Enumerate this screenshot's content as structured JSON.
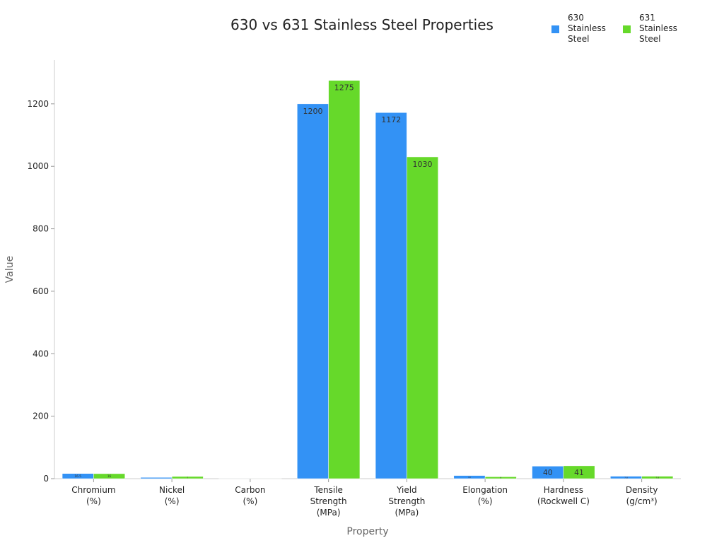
{
  "chart_data": {
    "type": "bar",
    "title": "630 vs 631 Stainless Steel Properties",
    "x_label": "Property",
    "y_label": "Value",
    "categories": [
      [
        "Chromium",
        "(%)"
      ],
      [
        "Nickel",
        "(%)"
      ],
      [
        "Carbon",
        "(%)"
      ],
      [
        "Tensile",
        "Strength",
        "(MPa)"
      ],
      [
        "Yield",
        "Strength",
        "(MPa)"
      ],
      [
        "Elongation",
        "(%)"
      ],
      [
        "Hardness",
        "(Rockwell C)"
      ],
      [
        "Density",
        "(g/cm³)"
      ]
    ],
    "series": [
      {
        "name": "630 Stainless Steel",
        "color": "#3392f5",
        "values": [
          16.5,
          4,
          0.07,
          1200,
          1172,
          10,
          40,
          7.8
        ]
      },
      {
        "name": "631 Stainless Steel",
        "color": "#66d92a",
        "values": [
          16,
          7,
          0.09,
          1275,
          1030,
          6,
          41,
          7.8
        ]
      }
    ],
    "ylim": [
      0,
      1340
    ],
    "yticks": [
      0,
      200,
      400,
      600,
      800,
      1000,
      1200
    ],
    "grid": false,
    "legend": "top-right"
  }
}
